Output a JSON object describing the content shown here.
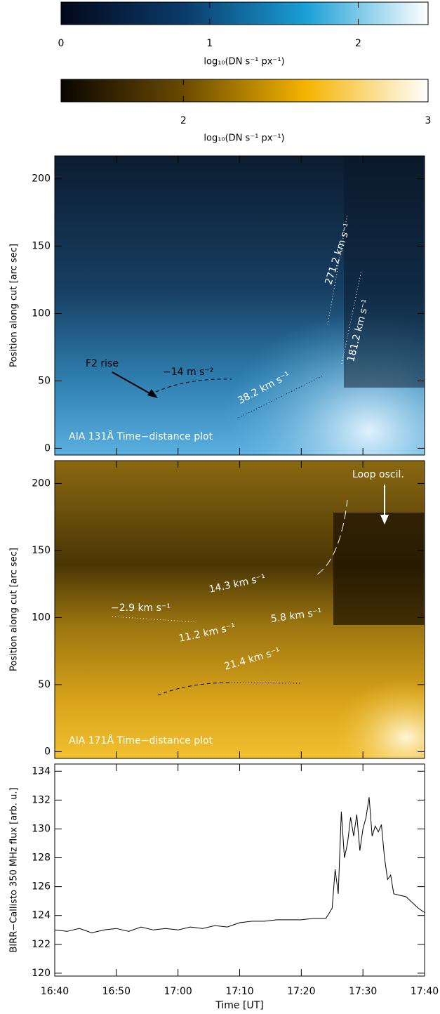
{
  "chart_data": [
    {
      "type": "colorbar",
      "label": "log₁₀(DN s⁻¹ px⁻¹)",
      "colors": [
        "#03081a",
        "#0a3a6a",
        "#1a9fd6",
        "#ffffff"
      ],
      "xlim": [
        0,
        2.47
      ],
      "xticks": [
        0,
        1,
        2
      ]
    },
    {
      "type": "colorbar",
      "label": "log₁₀(DN s⁻¹ px⁻¹)",
      "colors": [
        "#0a0600",
        "#6a4a00",
        "#f5b400",
        "#ffffff"
      ],
      "xlim": [
        1.5,
        3
      ],
      "xticks": [
        2,
        3
      ]
    },
    {
      "type": "image",
      "ylabel": "Position along cut [arc sec]",
      "ylim": [
        -5,
        217
      ],
      "yticks": [
        0,
        50,
        100,
        150,
        200
      ],
      "annotations": [
        "F2 rise",
        "−14 m s⁻²",
        "38.2 km s⁻¹",
        "271.2 km s⁻¹",
        "181.2 km s⁻¹",
        "AIA 131Å Time−distance plot"
      ]
    },
    {
      "type": "image",
      "ylabel": "Position along cut [arc sec]",
      "ylim": [
        -5,
        217
      ],
      "yticks": [
        0,
        50,
        100,
        150,
        200
      ],
      "annotations": [
        "Loop oscil.",
        "14.3 km s⁻¹",
        "−2.9 km s⁻¹",
        "5.8 km s⁻¹",
        "11.2 km s⁻¹",
        "21.4 km s⁻¹",
        "AIA 171Å Time−distance plot"
      ]
    },
    {
      "type": "line",
      "ylabel": "BIRR−Callisto 350 MHz flux [arb. u.]",
      "xlabel": "Time [UT]",
      "xlim": [
        1000,
        1060
      ],
      "xticks": [
        {
          "value": 1000,
          "label": "16:40"
        },
        {
          "value": 1010,
          "label": "16:50"
        },
        {
          "value": 1020,
          "label": "17:00"
        },
        {
          "value": 1030,
          "label": "17:10"
        },
        {
          "value": 1040,
          "label": "17:20"
        },
        {
          "value": 1050,
          "label": "17:30"
        },
        {
          "value": 1060,
          "label": "17:40"
        }
      ],
      "ylim": [
        119.8,
        134.5
      ],
      "yticks": [
        120,
        122,
        124,
        126,
        128,
        130,
        132,
        134
      ],
      "series": [
        {
          "color": "#000000",
          "x": [
            1000,
            1002,
            1004,
            1006,
            1008,
            1010,
            1012,
            1014,
            1016,
            1018,
            1020,
            1022,
            1024,
            1026,
            1028,
            1030,
            1032,
            1034,
            1036,
            1038,
            1040,
            1042,
            1044,
            1045,
            1045.5,
            1046,
            1046.5,
            1047,
            1047.5,
            1048,
            1048.5,
            1049,
            1049.5,
            1050,
            1050.5,
            1051,
            1051.5,
            1052,
            1052.5,
            1053,
            1053.5,
            1054,
            1054.5,
            1055,
            1056,
            1057,
            1058,
            1059,
            1060
          ],
          "values": [
            123,
            122.9,
            123.1,
            122.8,
            123,
            123.1,
            122.9,
            123.2,
            123,
            123.1,
            123,
            123.2,
            123.1,
            123.3,
            123.2,
            123.5,
            123.6,
            123.6,
            123.7,
            123.7,
            123.7,
            123.8,
            123.8,
            124.5,
            127.2,
            125.5,
            131.2,
            128,
            129,
            130.8,
            129.5,
            131,
            128.5,
            130,
            130.8,
            132.2,
            129.5,
            130.2,
            129.8,
            130.3,
            128,
            126.5,
            126.8,
            125.5,
            125.4,
            125.3,
            124.9,
            124.5,
            124.2
          ]
        }
      ]
    }
  ]
}
